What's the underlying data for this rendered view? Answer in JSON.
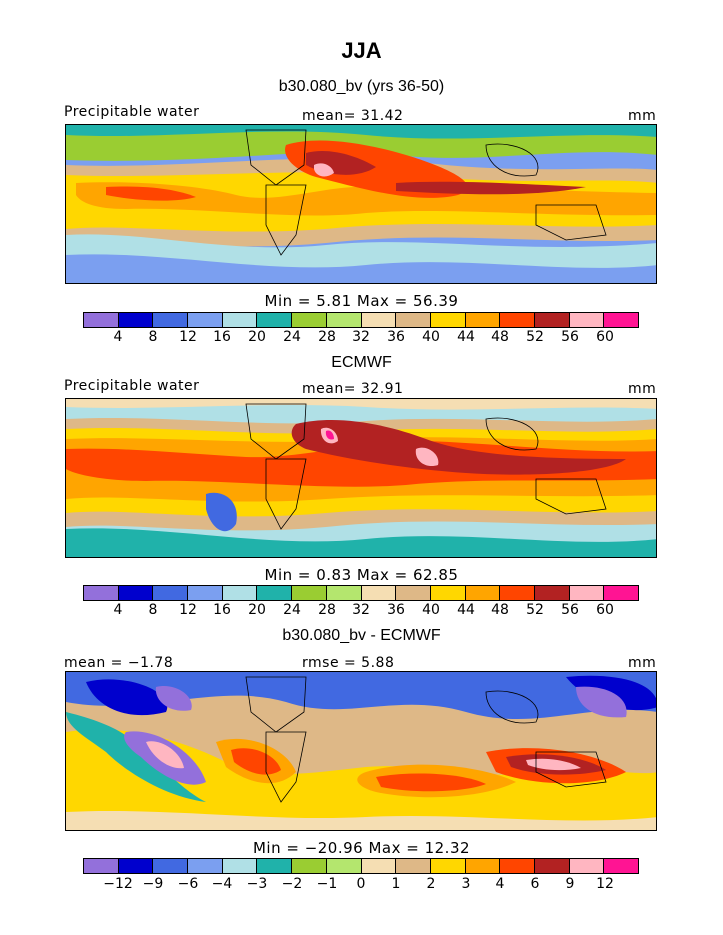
{
  "page": {
    "title": "JJA"
  },
  "panels": [
    {
      "heading": "b30.080_bv (yrs 36-50)",
      "left_label": "Precipitable water",
      "center_label": "mean=  31.42",
      "units": "mm",
      "stats": "Min =    5.81  Max =   56.39",
      "ticks": [
        "4",
        "8",
        "12",
        "16",
        "20",
        "24",
        "28",
        "32",
        "36",
        "40",
        "44",
        "48",
        "52",
        "56",
        "60"
      ]
    },
    {
      "heading": "ECMWF",
      "left_label": "Precipitable water",
      "center_label": "mean=  32.91",
      "units": "mm",
      "stats": "Min =    0.83  Max =   62.85",
      "ticks": [
        "4",
        "8",
        "12",
        "16",
        "20",
        "24",
        "28",
        "32",
        "36",
        "40",
        "44",
        "48",
        "52",
        "56",
        "60"
      ]
    },
    {
      "heading": "b30.080_bv - ECMWF",
      "left_label": "mean =   −1.78",
      "center_label": "rmse =    5.88",
      "units": "mm",
      "stats": "Min = −20.96  Max =   12.32",
      "ticks": [
        "−12",
        "−9",
        "−6",
        "−4",
        "−3",
        "−2",
        "−1",
        "0",
        "1",
        "2",
        "3",
        "4",
        "6",
        "9",
        "12"
      ]
    }
  ],
  "colorbar_colors": [
    "#9370db",
    "#0000cd",
    "#4169e1",
    "#7b9ff0",
    "#b0e0e6",
    "#20b2aa",
    "#9acd32",
    "#b4e66e",
    "#f5deb3",
    "#deb887",
    "#ffd700",
    "#ffa500",
    "#ff4500",
    "#b22222",
    "#ffb6c1",
    "#ff1493"
  ]
}
